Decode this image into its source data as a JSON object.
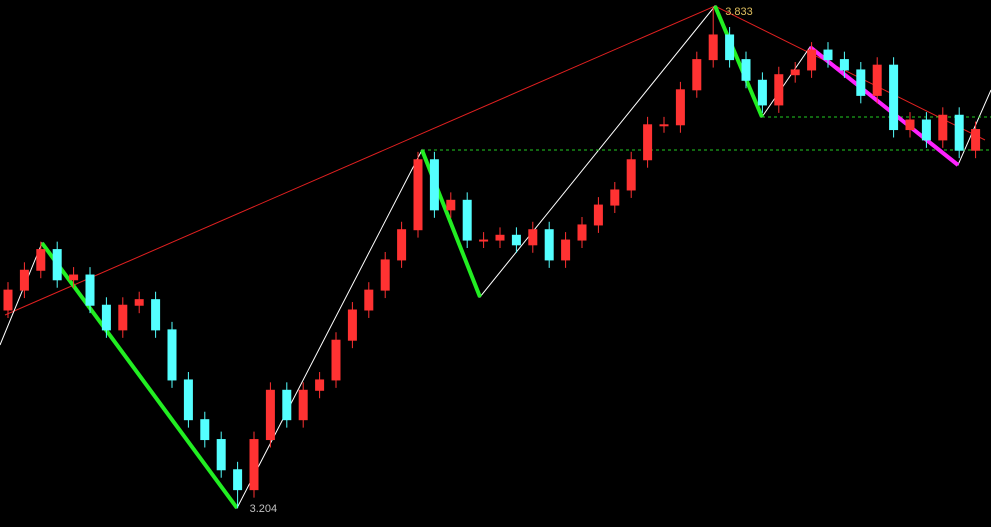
{
  "chart_data": {
    "type": "candlestick",
    "ylim": [
      3.18,
      3.843
    ],
    "up_color": "#ff3232",
    "down_color": "#54ffff",
    "open": [
      3.453,
      3.478,
      3.503,
      3.529,
      3.491,
      3.497,
      3.459,
      3.428,
      3.459,
      3.466,
      3.428,
      3.365,
      3.315,
      3.29,
      3.252,
      3.227,
      3.29,
      3.352,
      3.315,
      3.352,
      3.365,
      3.415,
      3.453,
      3.478,
      3.516,
      3.554,
      3.642,
      3.579,
      3.591,
      3.541,
      3.541,
      3.547,
      3.535,
      3.554,
      3.516,
      3.541,
      3.56,
      3.585,
      3.604,
      3.642,
      3.686,
      3.686,
      3.73,
      3.768,
      3.799,
      3.768,
      3.742,
      3.711,
      3.749,
      3.755,
      3.78,
      3.768,
      3.755,
      3.723,
      3.761,
      3.68,
      3.692,
      3.667,
      3.698,
      3.654
    ],
    "high": [
      3.488,
      3.513,
      3.539,
      3.539,
      3.507,
      3.507,
      3.469,
      3.469,
      3.476,
      3.476,
      3.438,
      3.375,
      3.325,
      3.3,
      3.262,
      3.3,
      3.362,
      3.362,
      3.362,
      3.375,
      3.425,
      3.463,
      3.488,
      3.526,
      3.564,
      3.652,
      3.652,
      3.601,
      3.601,
      3.551,
      3.557,
      3.557,
      3.564,
      3.564,
      3.551,
      3.57,
      3.595,
      3.614,
      3.652,
      3.696,
      3.696,
      3.74,
      3.778,
      3.833,
      3.809,
      3.778,
      3.752,
      3.759,
      3.765,
      3.79,
      3.79,
      3.778,
      3.765,
      3.771,
      3.771,
      3.702,
      3.702,
      3.708,
      3.708,
      3.69
    ],
    "low": [
      3.443,
      3.468,
      3.493,
      3.481,
      3.481,
      3.449,
      3.418,
      3.418,
      3.449,
      3.418,
      3.355,
      3.305,
      3.28,
      3.242,
      3.204,
      3.217,
      3.28,
      3.305,
      3.305,
      3.342,
      3.355,
      3.405,
      3.443,
      3.468,
      3.506,
      3.544,
      3.569,
      3.569,
      3.531,
      3.531,
      3.531,
      3.525,
      3.525,
      3.506,
      3.506,
      3.531,
      3.55,
      3.575,
      3.594,
      3.632,
      3.676,
      3.676,
      3.72,
      3.758,
      3.758,
      3.732,
      3.701,
      3.701,
      3.739,
      3.745,
      3.758,
      3.745,
      3.713,
      3.713,
      3.67,
      3.67,
      3.657,
      3.657,
      3.644,
      3.644
    ],
    "close": [
      3.478,
      3.503,
      3.529,
      3.491,
      3.497,
      3.459,
      3.428,
      3.459,
      3.466,
      3.428,
      3.365,
      3.315,
      3.29,
      3.252,
      3.227,
      3.29,
      3.352,
      3.315,
      3.352,
      3.365,
      3.415,
      3.453,
      3.478,
      3.516,
      3.554,
      3.642,
      3.579,
      3.591,
      3.541,
      3.541,
      3.547,
      3.535,
      3.554,
      3.516,
      3.541,
      3.56,
      3.585,
      3.604,
      3.642,
      3.686,
      3.686,
      3.73,
      3.768,
      3.799,
      3.768,
      3.742,
      3.711,
      3.749,
      3.755,
      3.78,
      3.768,
      3.755,
      3.723,
      3.761,
      3.68,
      3.692,
      3.667,
      3.698,
      3.654,
      3.68
    ],
    "annotations": [
      "3.204",
      "3.833"
    ]
  }
}
